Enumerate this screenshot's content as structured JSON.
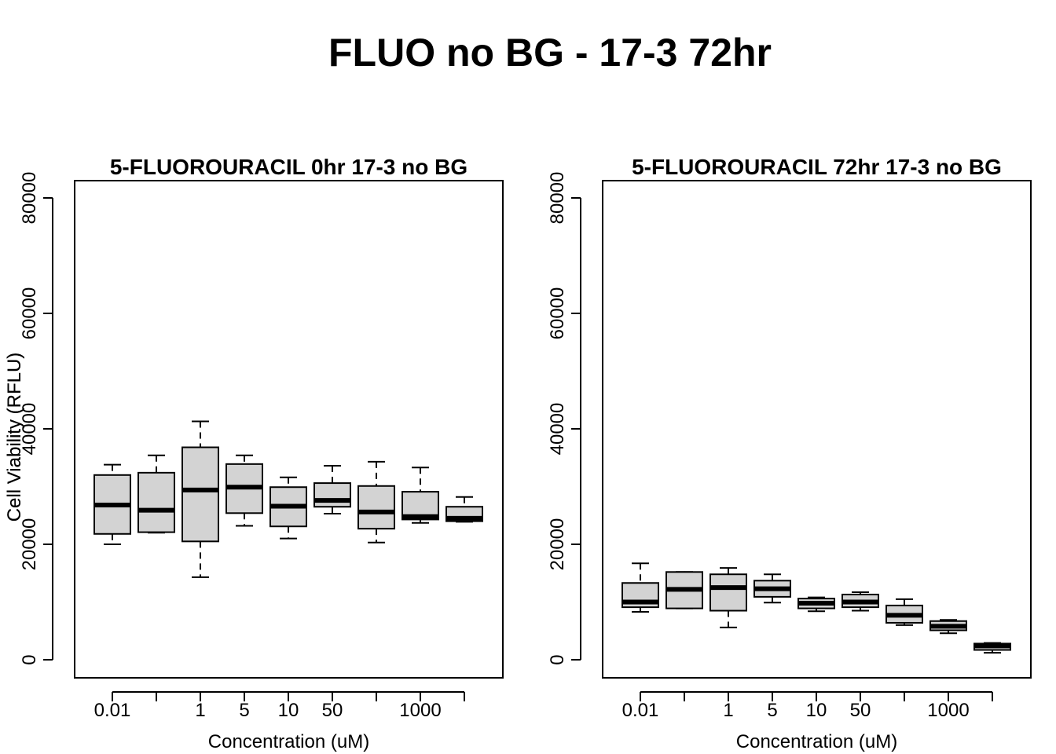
{
  "title": "FLUO no BG - 17-3 72hr",
  "chart_data": [
    {
      "type": "boxplot",
      "title": "5-FLUOROURACIL 0hr 17-3 no BG",
      "xlabel": "Concentration (uM)",
      "ylabel": "Cell Viability (RFLU)",
      "ylim": [
        0,
        80000
      ],
      "yticks": [
        "0",
        "20000",
        "40000",
        "60000",
        "80000"
      ],
      "categories": [
        "0.01",
        "",
        "1",
        "5",
        "10",
        "50",
        "",
        "1000",
        ""
      ],
      "boxes": [
        {
          "whisker_low": 20000,
          "q1": 21800,
          "median": 26800,
          "q3": 32000,
          "whisker_high": 33800
        },
        {
          "whisker_low": 22000,
          "q1": 22100,
          "median": 25900,
          "q3": 32400,
          "whisker_high": 35400
        },
        {
          "whisker_low": 14300,
          "q1": 20500,
          "median": 29400,
          "q3": 36800,
          "whisker_high": 41300
        },
        {
          "whisker_low": 23200,
          "q1": 25400,
          "median": 29900,
          "q3": 33900,
          "whisker_high": 35400
        },
        {
          "whisker_low": 21000,
          "q1": 23100,
          "median": 26600,
          "q3": 29900,
          "whisker_high": 31600
        },
        {
          "whisker_low": 25300,
          "q1": 26500,
          "median": 27600,
          "q3": 30600,
          "whisker_high": 33600
        },
        {
          "whisker_low": 20300,
          "q1": 22700,
          "median": 25600,
          "q3": 30100,
          "whisker_high": 34300
        },
        {
          "whisker_low": 23700,
          "q1": 24300,
          "median": 24800,
          "q3": 29100,
          "whisker_high": 33300
        },
        {
          "whisker_low": 23900,
          "q1": 24000,
          "median": 24500,
          "q3": 26500,
          "whisker_high": 28200
        }
      ]
    },
    {
      "type": "boxplot",
      "title": "5-FLUOROURACIL 72hr 17-3 no BG",
      "xlabel": "Concentration (uM)",
      "ylabel": "Cell Viability (RFLU)",
      "ylim": [
        0,
        80000
      ],
      "yticks": [
        "0",
        "20000",
        "40000",
        "60000",
        "80000"
      ],
      "categories": [
        "0.01",
        "",
        "1",
        "5",
        "10",
        "50",
        "",
        "1000",
        ""
      ],
      "boxes": [
        {
          "whisker_low": 8300,
          "q1": 9100,
          "median": 10000,
          "q3": 13300,
          "whisker_high": 16700
        },
        {
          "whisker_low": 8900,
          "q1": 8900,
          "median": 12200,
          "q3": 15200,
          "whisker_high": 15200
        },
        {
          "whisker_low": 5600,
          "q1": 8500,
          "median": 12500,
          "q3": 14800,
          "whisker_high": 15900
        },
        {
          "whisker_low": 9900,
          "q1": 10900,
          "median": 12300,
          "q3": 13700,
          "whisker_high": 14800
        },
        {
          "whisker_low": 8400,
          "q1": 8900,
          "median": 9800,
          "q3": 10600,
          "whisker_high": 10800
        },
        {
          "whisker_low": 8500,
          "q1": 9100,
          "median": 10000,
          "q3": 11300,
          "whisker_high": 11700
        },
        {
          "whisker_low": 6000,
          "q1": 6400,
          "median": 7700,
          "q3": 9400,
          "whisker_high": 10500
        },
        {
          "whisker_low": 4600,
          "q1": 5100,
          "median": 5800,
          "q3": 6700,
          "whisker_high": 6900
        },
        {
          "whisker_low": 1200,
          "q1": 1700,
          "median": 2400,
          "q3": 2800,
          "whisker_high": 2900
        }
      ]
    }
  ]
}
